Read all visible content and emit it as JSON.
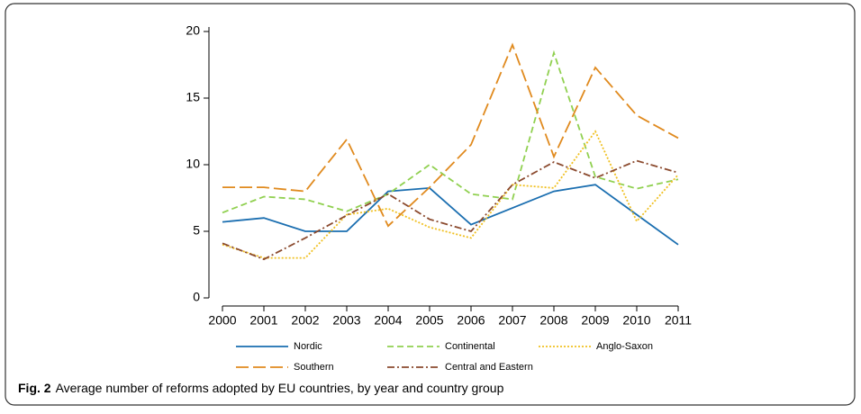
{
  "chart_data": {
    "type": "line",
    "caption_label": "Fig. 2",
    "caption_text": "Average number of reforms adopted by EU countries, by year and country group",
    "categories": [
      "2000",
      "2001",
      "2002",
      "2003",
      "2004",
      "2005",
      "2006",
      "2007",
      "2008",
      "2009",
      "2010",
      "2011"
    ],
    "ylim": [
      0,
      20
    ],
    "yticks": [
      0,
      5,
      10,
      15,
      20
    ],
    "grid": false,
    "series": [
      {
        "name": "Nordic",
        "color": "#1a6eb0",
        "dash": "none",
        "values": [
          5.7,
          6.0,
          5.0,
          5.0,
          8.0,
          8.25,
          5.5,
          6.75,
          8.0,
          8.5,
          6.25,
          4.0
        ]
      },
      {
        "name": "Continental",
        "color": "#90d050",
        "dash": "7 4",
        "values": [
          6.4,
          7.6,
          7.4,
          6.5,
          7.8,
          10.0,
          7.8,
          7.4,
          18.4,
          9.1,
          8.2,
          8.9
        ]
      },
      {
        "name": "Anglo-Saxon",
        "color": "#f0c020",
        "dash": "2 2",
        "values": [
          4.0,
          3.0,
          3.0,
          6.25,
          6.7,
          5.3,
          4.5,
          8.5,
          8.25,
          12.5,
          5.75,
          9.25
        ]
      },
      {
        "name": "Southern",
        "color": "#e08a1e",
        "dash": "14 5",
        "values": [
          8.3,
          8.3,
          8.0,
          11.9,
          5.4,
          8.3,
          11.5,
          19.0,
          10.6,
          17.3,
          13.7,
          12.0
        ]
      },
      {
        "name": "Central and Eastern",
        "color": "#8b4a2e",
        "dash": "8 3 2 3",
        "values": [
          4.1,
          2.9,
          4.5,
          6.2,
          7.8,
          5.9,
          5.0,
          8.5,
          10.2,
          9.0,
          10.3,
          9.4
        ]
      }
    ]
  }
}
